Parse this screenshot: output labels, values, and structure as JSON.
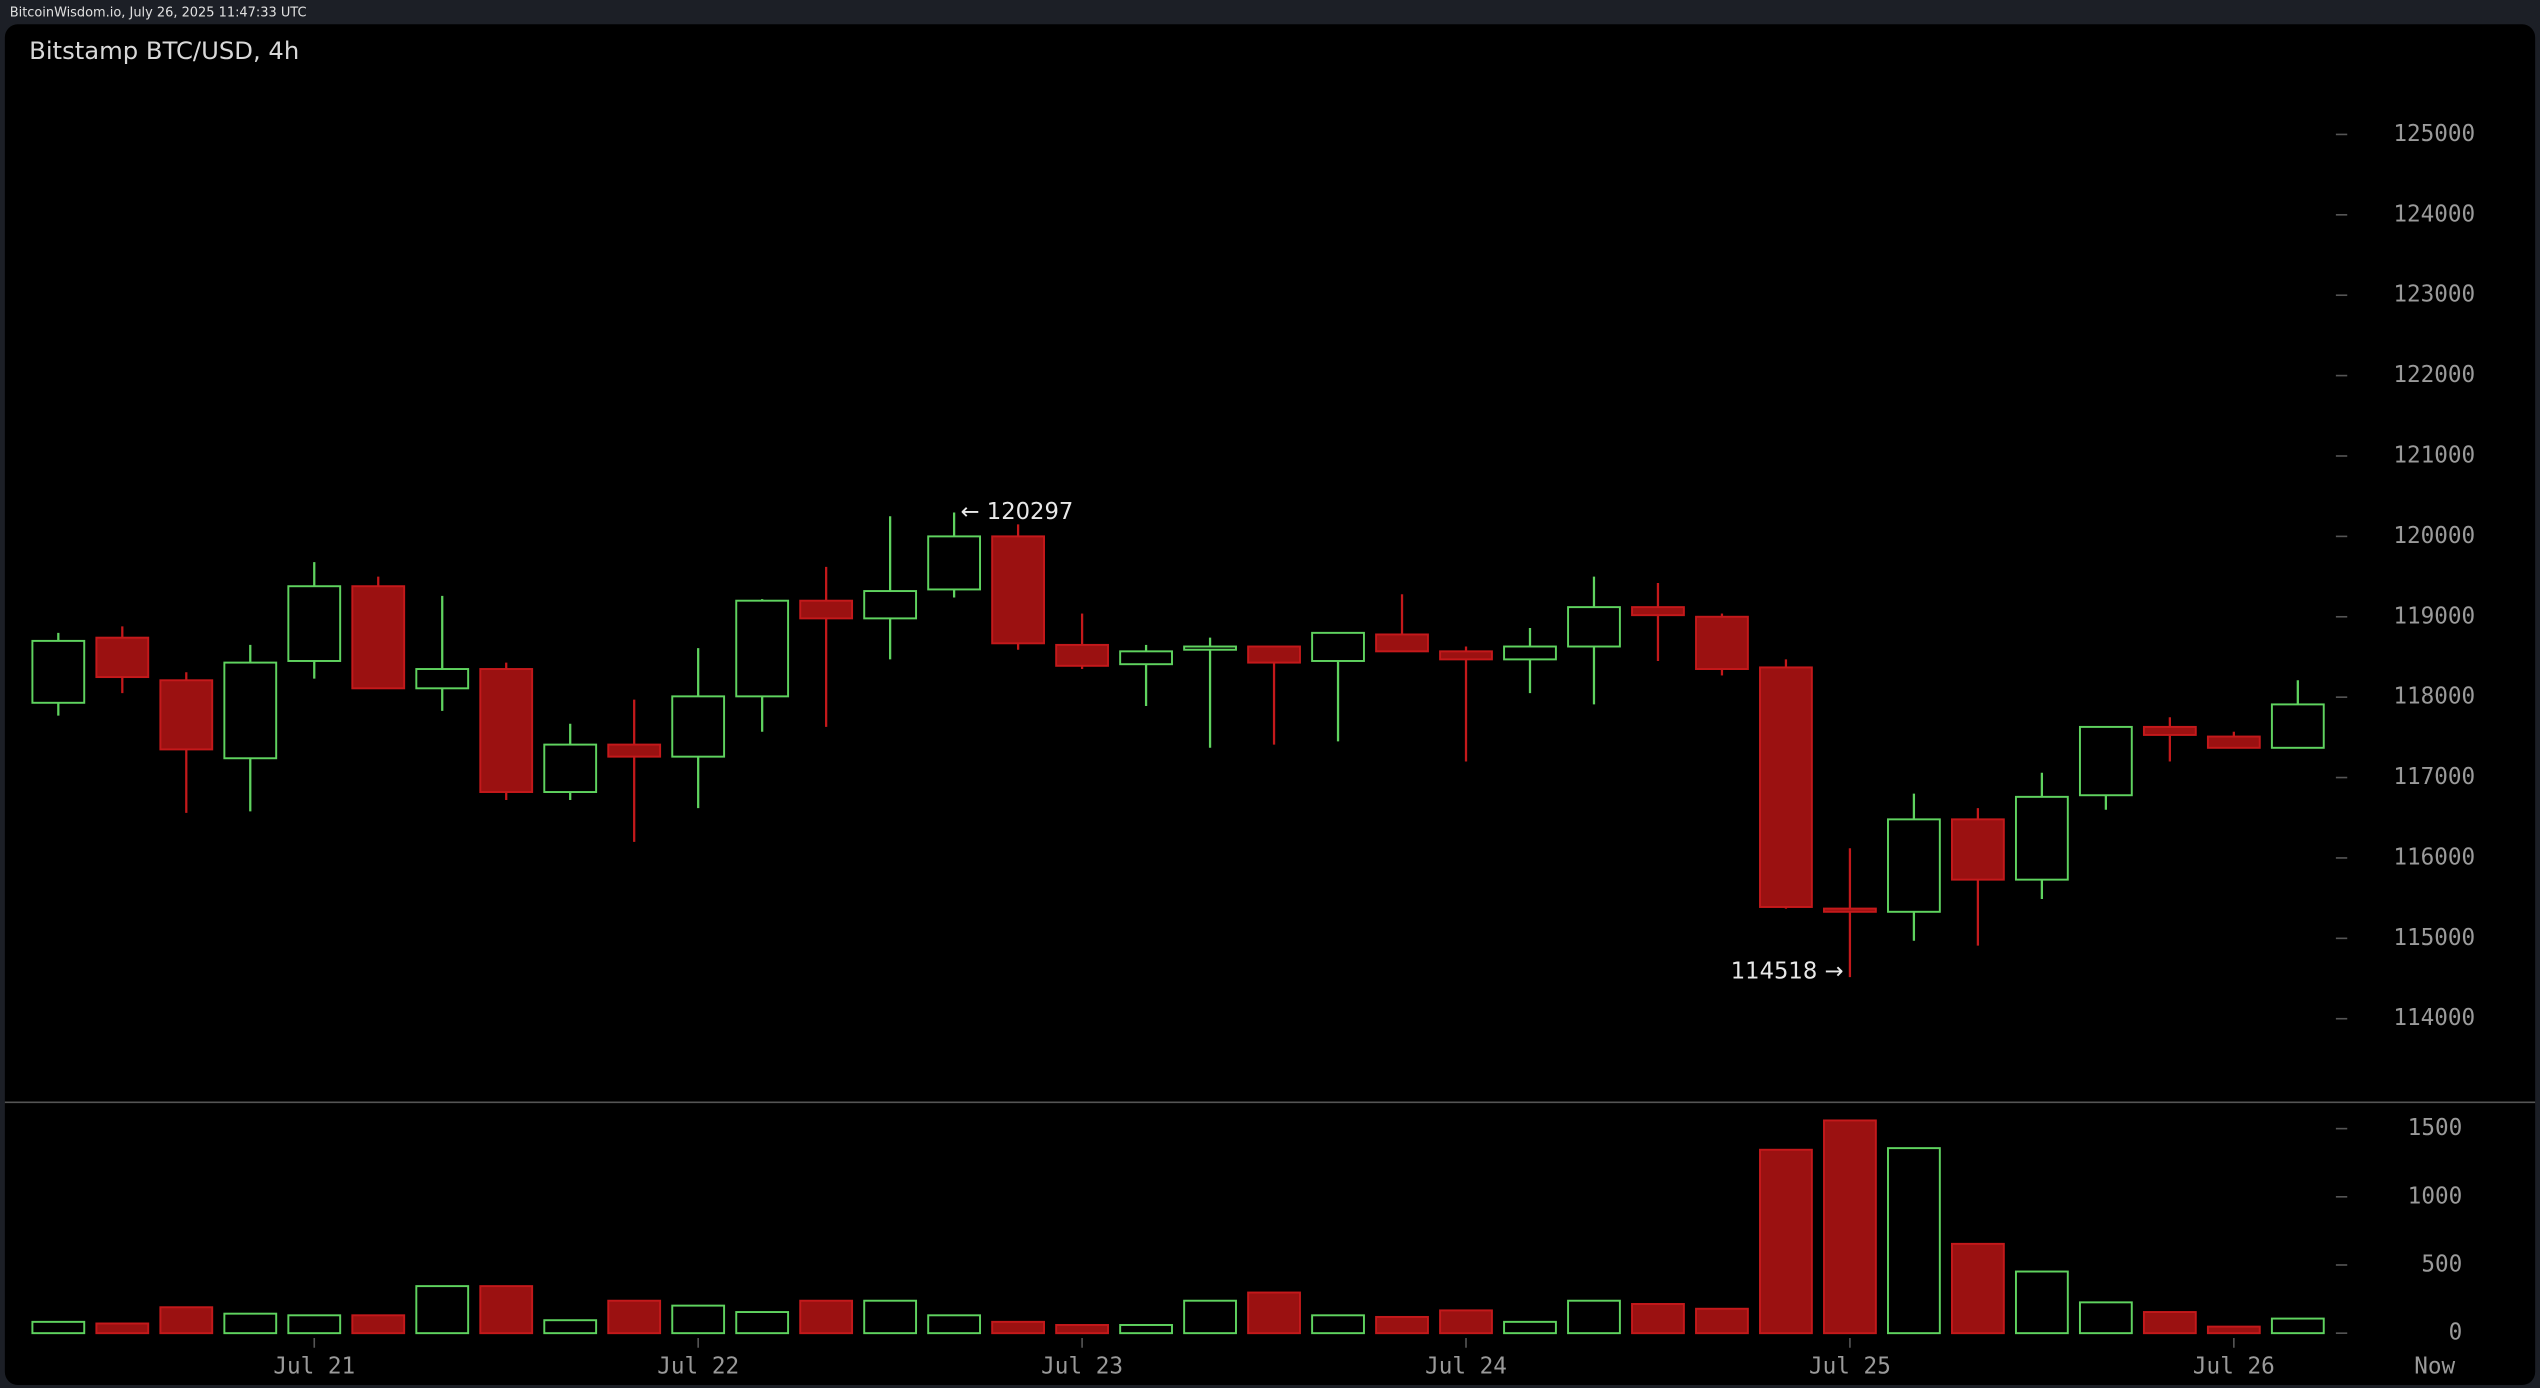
{
  "header": {
    "source": "BitcoinWisdom.io, July 26, 2025 11:47:33 UTC"
  },
  "chart_data": {
    "type": "candlestick",
    "title": "Bitstamp BTC/USD, 4h",
    "categories": [
      null,
      null,
      null,
      null,
      "Jul 21",
      null,
      null,
      null,
      null,
      null,
      "Jul 22",
      null,
      null,
      null,
      null,
      null,
      "Jul 23",
      null,
      null,
      null,
      null,
      null,
      "Jul 24",
      null,
      null,
      null,
      null,
      null,
      "Jul 25",
      null,
      null,
      null,
      null,
      null,
      "Jul 26",
      null
    ],
    "now_label": "Now",
    "open": [
      117930,
      118740,
      118210,
      117240,
      118450,
      119380,
      118110,
      118350,
      116820,
      117410,
      117260,
      118010,
      119200,
      118980,
      119340,
      120000,
      118650,
      118410,
      118590,
      118630,
      118450,
      118780,
      118570,
      118470,
      118630,
      119120,
      119000,
      118370,
      115370,
      115330,
      116480,
      115730,
      116780,
      117630,
      117510,
      117370
    ],
    "high": [
      118800,
      118880,
      118310,
      118650,
      119680,
      119500,
      119260,
      118430,
      117670,
      117970,
      118610,
      119220,
      119620,
      120250,
      120297,
      120150,
      119040,
      118650,
      118740,
      118630,
      118800,
      119280,
      118630,
      118860,
      119500,
      119420,
      119040,
      118470,
      116120,
      116800,
      116620,
      117060,
      117630,
      117750,
      117570,
      118210
    ],
    "low": [
      117770,
      118050,
      116560,
      116580,
      118230,
      118110,
      117830,
      116720,
      116720,
      116200,
      116620,
      117570,
      117630,
      118470,
      119240,
      118590,
      118350,
      117890,
      117370,
      117410,
      117450,
      118570,
      117200,
      118050,
      117910,
      118450,
      118270,
      115370,
      114518,
      114970,
      114910,
      115490,
      116600,
      117200,
      117370,
      117370
    ],
    "close": [
      118700,
      118250,
      117350,
      118430,
      119380,
      118110,
      118350,
      116820,
      117410,
      117260,
      118010,
      119200,
      118980,
      119320,
      120000,
      118670,
      118390,
      118570,
      118630,
      118430,
      118800,
      118570,
      118470,
      118630,
      119120,
      119020,
      118350,
      115390,
      115330,
      116480,
      115730,
      116760,
      117630,
      117530,
      117370,
      117910
    ],
    "high_labels": [
      null,
      null,
      null,
      null,
      null,
      null,
      null,
      null,
      null,
      null,
      null,
      null,
      null,
      null,
      "← 120297",
      null,
      null,
      null,
      null,
      null,
      null,
      null,
      null,
      null,
      null,
      null,
      null,
      null,
      null,
      null,
      null,
      null,
      null,
      null,
      null,
      null
    ],
    "low_labels": [
      null,
      null,
      null,
      null,
      null,
      null,
      null,
      null,
      null,
      null,
      null,
      null,
      null,
      null,
      null,
      null,
      null,
      null,
      null,
      null,
      null,
      null,
      null,
      null,
      null,
      null,
      null,
      null,
      "114518 →",
      null,
      null,
      null,
      null,
      null,
      null,
      null
    ],
    "up_color": "#5fd35f",
    "down_color": "#9b1111",
    "ylim": [
      112970,
      126370
    ],
    "yticks": [
      114000,
      115000,
      116000,
      117000,
      118000,
      119000,
      120000,
      121000,
      122000,
      123000,
      124000,
      125000
    ],
    "volume": [
      83,
      71,
      190,
      143,
      131,
      131,
      345,
      345,
      95,
      238,
      202,
      155,
      238,
      238,
      131,
      83,
      60,
      60,
      238,
      298,
      131,
      119,
      167,
      83,
      238,
      214,
      179,
      1345,
      1560,
      1357,
      655,
      452,
      226,
      155,
      48,
      107
    ],
    "volume_ylim": [
      0,
      1580
    ],
    "volume_yticks": [
      0,
      500,
      1000,
      1500
    ]
  }
}
